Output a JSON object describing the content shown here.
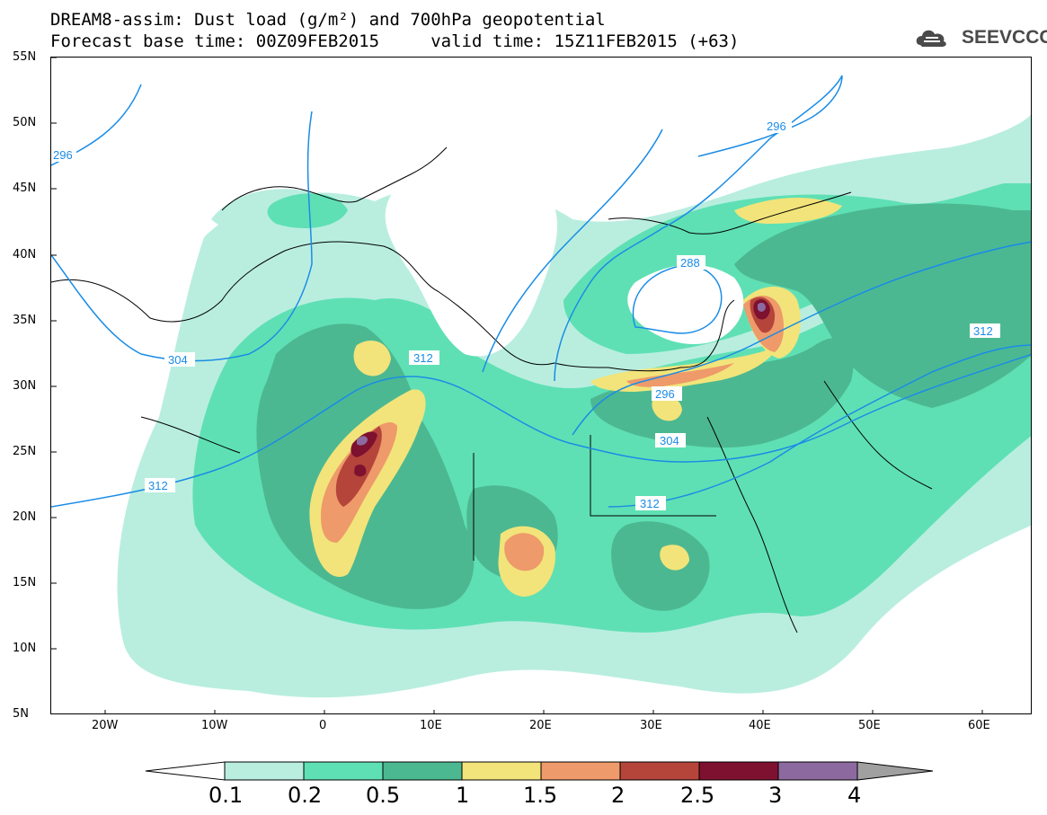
{
  "header": {
    "title_line1": "DREAM8-assim: Dust load (g/m²) and 700hPa geopotential",
    "title_line2": "Forecast base time: 00Z09FEB2015     valid time: 15Z11FEB2015 (+63)"
  },
  "logo": {
    "text": "SEEVCCC",
    "icon": "cloud-logo-icon"
  },
  "map": {
    "latitude_labels": [
      "55N",
      "50N",
      "45N",
      "40N",
      "35N",
      "30N",
      "25N",
      "20N",
      "15N",
      "10N",
      "5N"
    ],
    "longitude_labels": [
      "20W",
      "10W",
      "0",
      "10E",
      "20E",
      "30E",
      "40E",
      "50E",
      "60E"
    ],
    "contour_labels": [
      "296",
      "296",
      "288",
      "304",
      "312",
      "312",
      "296",
      "304",
      "312",
      "312"
    ],
    "contour_color": "#1a8ce6"
  },
  "legend": {
    "levels": [
      "0.1",
      "0.2",
      "0.5",
      "1",
      "1.5",
      "2",
      "2.5",
      "3",
      "4"
    ],
    "colors": [
      "#ffffff",
      "#b9eedf",
      "#5fe0b4",
      "#4cb892",
      "#f2e47a",
      "#ee9a6a",
      "#b5453a",
      "#7e1030",
      "#8c6aa0",
      "#a0a0a0"
    ]
  }
}
